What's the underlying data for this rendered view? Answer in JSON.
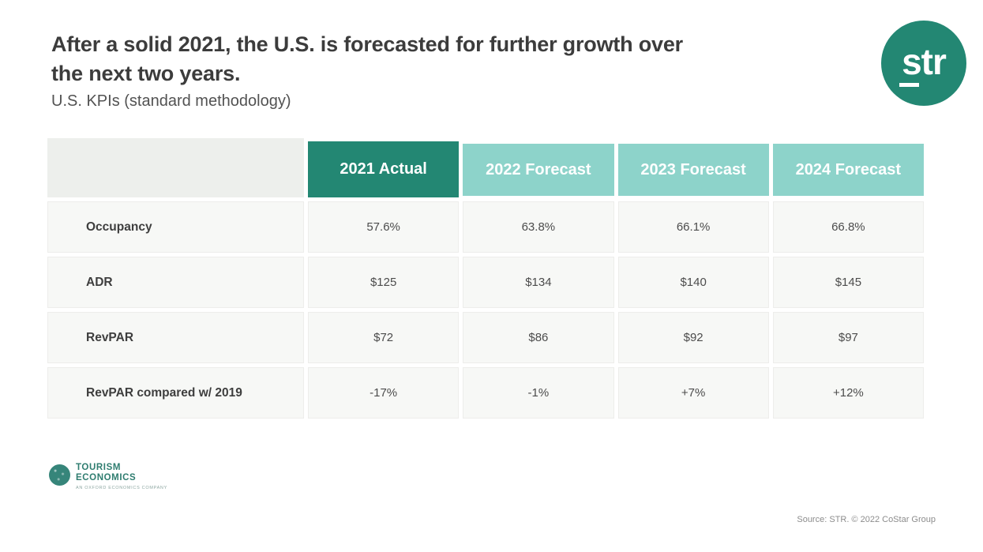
{
  "header": {
    "title_line1": "After a solid 2021, the U.S. is forecasted for further growth over",
    "title_line2": "the next two years.",
    "subtitle": "U.S. KPIs (standard methodology)"
  },
  "logo": {
    "text": "str"
  },
  "chart_data": {
    "type": "table",
    "title": "After a solid 2021, the U.S. is forecasted for further growth over the next two years.",
    "subtitle": "U.S. KPIs (standard methodology)",
    "columns": [
      "2021 Actual",
      "2022 Forecast",
      "2023 Forecast",
      "2024 Forecast"
    ],
    "rows": [
      {
        "label": "Occupancy",
        "values": [
          "57.6%",
          "63.8%",
          "66.1%",
          "66.8%"
        ]
      },
      {
        "label": "ADR",
        "values": [
          "$125",
          "$134",
          "$140",
          "$145"
        ]
      },
      {
        "label": "RevPAR",
        "values": [
          "$72",
          "$86",
          "$92",
          "$97"
        ]
      },
      {
        "label": "RevPAR compared w/ 2019",
        "values": [
          "-17%",
          "-1%",
          "+7%",
          "+12%"
        ]
      }
    ]
  },
  "footer": {
    "tourism_line1": "TOURISM",
    "tourism_line2": "ECONOMICS",
    "tourism_tagline": "AN OXFORD ECONOMICS COMPANY",
    "source": "Source: STR. © 2022 CoStar Group"
  },
  "colors": {
    "accent_dark_teal": "#238773",
    "accent_light_teal": "#8DD3CA",
    "corner_header_gray": "#EDEFEC"
  }
}
